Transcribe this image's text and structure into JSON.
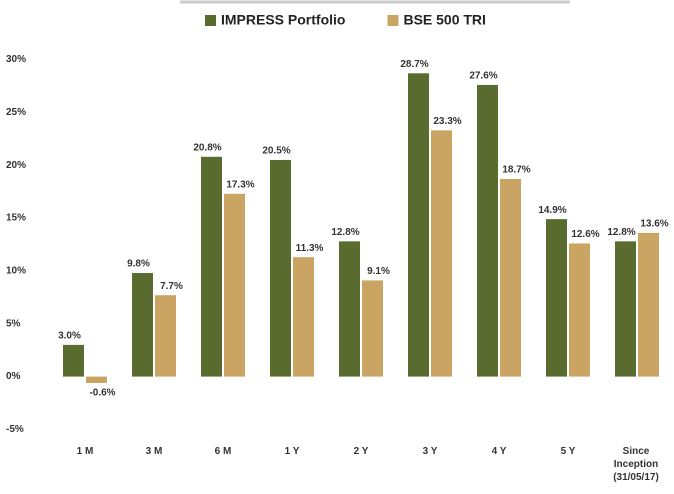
{
  "chart_data": {
    "type": "bar",
    "categories": [
      "1 M",
      "3 M",
      "6 M",
      "1 Y",
      "2 Y",
      "3 Y",
      "4 Y",
      "5 Y",
      "Since Inception (31/05/17)"
    ],
    "series": [
      {
        "name": "IMPRESS Portfolio",
        "color": "#5a6b2f",
        "values": [
          3.0,
          9.8,
          20.8,
          20.5,
          12.8,
          28.7,
          27.6,
          14.9,
          12.8
        ],
        "value_labels": [
          "3.0%",
          "9.8%",
          "20.8%",
          "20.5%",
          "12.8%",
          "28.7%",
          "27.6%",
          "14.9%",
          "12.8%"
        ]
      },
      {
        "name": "BSE 500 TRI",
        "color": "#c9a463",
        "values": [
          -0.6,
          7.7,
          17.3,
          11.3,
          9.1,
          23.3,
          18.7,
          12.6,
          13.6
        ],
        "value_labels": [
          "-0.6%",
          "7.7%",
          "17.3%",
          "11.3%",
          "9.1%",
          "23.3%",
          "18.7%",
          "12.6%",
          "13.6%"
        ]
      }
    ],
    "ylim": [
      -6,
      31
    ],
    "yticks": [
      {
        "value": -5,
        "label": "-5%"
      },
      {
        "value": 0,
        "label": "0%"
      },
      {
        "value": 5,
        "label": "5%"
      },
      {
        "value": 10,
        "label": "10%"
      },
      {
        "value": 15,
        "label": "15%"
      },
      {
        "value": 20,
        "label": "20%"
      },
      {
        "value": 25,
        "label": "25%"
      },
      {
        "value": 30,
        "label": "30%"
      }
    ],
    "legend": "top",
    "grid": false
  }
}
